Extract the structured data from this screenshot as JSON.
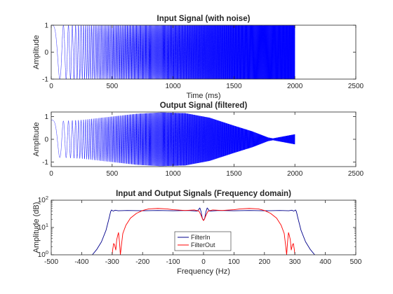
{
  "chart_data": [
    {
      "type": "line",
      "title": "Input Signal (with noise)",
      "xlabel": "Time (ms)",
      "ylabel": "Amplitude",
      "xlim": [
        0,
        2500
      ],
      "ylim": [
        -1,
        1
      ],
      "xticks": [
        0,
        500,
        1000,
        1500,
        2000,
        2500
      ],
      "yticks": [
        -1,
        0,
        1
      ],
      "grid": false,
      "series": [
        {
          "color": "#0000ff",
          "signal": "chirp",
          "t_range": [
            0,
            2000
          ],
          "f_start_hz": 0,
          "f_end_hz": 400,
          "envelope": {
            "t": [
              0,
              2000
            ],
            "a": [
              1,
              1
            ]
          }
        }
      ]
    },
    {
      "type": "line",
      "title": "Output Signal (filtered)",
      "xlabel": "",
      "ylabel": "Amplitude",
      "xlim": [
        0,
        2500
      ],
      "ylim": [
        -1.2,
        1.2
      ],
      "xticks": [
        0,
        500,
        1000,
        1500,
        2000,
        2500
      ],
      "yticks": [
        -1,
        0,
        1
      ],
      "grid": false,
      "series": [
        {
          "color": "#0000ff",
          "signal": "chirp",
          "t_range": [
            0,
            2000
          ],
          "f_start_hz": 0,
          "f_end_hz": 400,
          "envelope": {
            "t": [
              0,
              80,
              250,
              500,
              700,
              900,
              1100,
              1300,
              1500,
              1650,
              1780,
              1820,
              1900,
              2000
            ],
            "a": [
              0.85,
              0.8,
              0.85,
              1.0,
              1.12,
              1.18,
              1.15,
              0.95,
              0.6,
              0.35,
              0.08,
              0.04,
              0.12,
              0.22
            ]
          }
        }
      ]
    },
    {
      "type": "line",
      "title": "Input and Output Signals (Frequency domain)",
      "xlabel": "Frequency (Hz)",
      "ylabel": "Amplitude (dB)",
      "xlim": [
        -500,
        500
      ],
      "ylim": [
        1,
        100
      ],
      "yscale": "log",
      "xticks": [
        -500,
        -400,
        -300,
        -200,
        -100,
        0,
        100,
        200,
        300,
        400,
        500
      ],
      "yticks": [
        1,
        10,
        100
      ],
      "ytick_labels": [
        "10^0",
        "10^1",
        "10^2"
      ],
      "grid": false,
      "legend": "bottom-center",
      "series": [
        {
          "name": "FilterIn",
          "color": "#00008b",
          "x": [
            -365,
            -350,
            -335,
            -320,
            -310,
            -305,
            -302,
            -300,
            -296,
            -290,
            -280,
            -250,
            -200,
            -150,
            -100,
            -50,
            -20,
            -12,
            -8,
            -4,
            0,
            4,
            8,
            12,
            20,
            50,
            100,
            150,
            200,
            250,
            280,
            290,
            296,
            300,
            302,
            305,
            310,
            320,
            335,
            350,
            365
          ],
          "y": [
            1,
            1.6,
            3,
            8,
            22,
            38,
            44,
            42,
            40,
            43,
            41,
            42,
            41,
            42,
            41,
            42,
            40,
            52,
            38,
            22,
            18,
            22,
            38,
            52,
            40,
            42,
            41,
            42,
            41,
            42,
            41,
            43,
            40,
            42,
            44,
            38,
            22,
            8,
            3,
            1.6,
            1
          ]
        },
        {
          "name": "FilterOut",
          "color": "#ff0000",
          "x": [
            -300,
            -298,
            -295,
            -292,
            -288,
            -285,
            -282,
            -279,
            -276,
            -273,
            -270,
            -265,
            -255,
            -240,
            -220,
            -200,
            -180,
            -150,
            -120,
            -100,
            -60,
            -30,
            -15,
            -8,
            -3,
            0,
            3,
            8,
            15,
            30,
            60,
            100,
            120,
            150,
            180,
            200,
            220,
            240,
            255,
            265,
            270,
            273,
            276,
            279,
            282,
            285,
            288,
            292,
            295,
            298,
            300
          ],
          "y": [
            1,
            1.6,
            2.6,
            2.3,
            1.5,
            3.5,
            5,
            6.5,
            3,
            1,
            2,
            6,
            12,
            22,
            33,
            42,
            48,
            50,
            48,
            45,
            42,
            44,
            40,
            28,
            20,
            18,
            20,
            28,
            40,
            44,
            42,
            45,
            48,
            50,
            48,
            42,
            33,
            22,
            12,
            6,
            2,
            1,
            3,
            6.5,
            5,
            3.5,
            1.5,
            2.3,
            2.6,
            1.6,
            1
          ]
        }
      ]
    }
  ]
}
